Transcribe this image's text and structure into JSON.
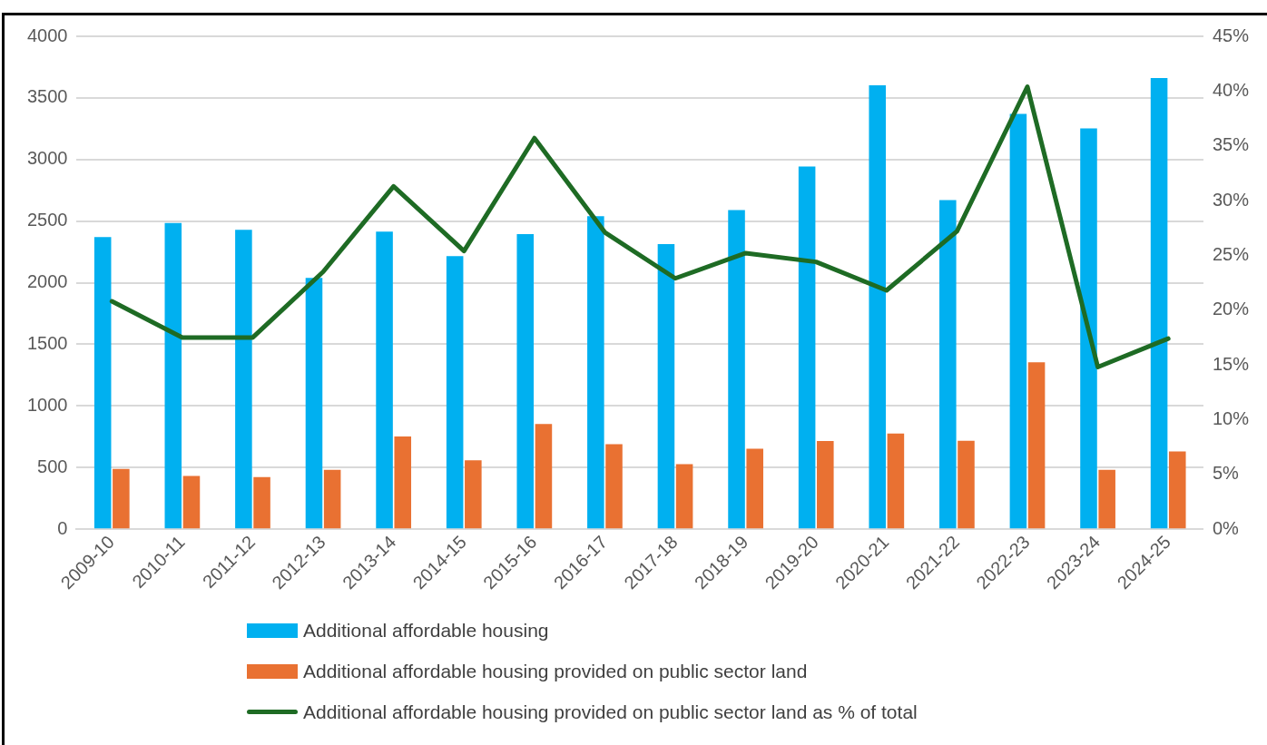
{
  "chart_data": {
    "type": "bar",
    "categories": [
      "2009-10",
      "2010-11",
      "2011-12",
      "2012-13",
      "2013-14",
      "2014-15",
      "2015-16",
      "2016-17",
      "2017-18",
      "2018-19",
      "2019-20",
      "2020-21",
      "2021-22",
      "2022-23",
      "2023-24",
      "2024-25"
    ],
    "series": [
      {
        "name": "Additional affordable housing",
        "color": "#00b0f0",
        "values": [
          2370,
          2485,
          2430,
          2040,
          2415,
          2215,
          2395,
          2540,
          2313,
          2589,
          2943,
          3602,
          2670,
          3370,
          3252,
          3661
        ]
      },
      {
        "name": "Additional affordable housing provided on public sector land",
        "color": "#e97132",
        "values": [
          489,
          431,
          423,
          482,
          752,
          558,
          854,
          690,
          527,
          652,
          715,
          777,
          718,
          1355,
          482,
          630
        ]
      },
      {
        "name": "Additional affordable housing provided on public sector land as % of total",
        "type": "line",
        "axis": "y2",
        "color": "#1e6b24",
        "values": [
          20.8,
          17.5,
          17.5,
          23.5,
          31.3,
          25.4,
          35.7,
          27.1,
          22.9,
          25.2,
          24.4,
          21.8,
          27.2,
          40.4,
          14.8,
          17.4
        ]
      }
    ],
    "ylim": [
      0,
      4000
    ],
    "yticks": [
      0,
      500,
      1000,
      1500,
      2000,
      2500,
      3000,
      3500,
      4000
    ],
    "y2lim": [
      0,
      45
    ],
    "y2ticks": [
      {
        "value": 0,
        "label": "0%"
      },
      {
        "value": 5,
        "label": "5%"
      },
      {
        "value": 10,
        "label": "10%"
      },
      {
        "value": 15,
        "label": "15%"
      },
      {
        "value": 20,
        "label": "20%"
      },
      {
        "value": 25,
        "label": "25%"
      },
      {
        "value": 30,
        "label": "30%"
      },
      {
        "value": 35,
        "label": "35%"
      },
      {
        "value": 40,
        "label": "40%"
      },
      {
        "value": 45,
        "label": "45%"
      }
    ],
    "grid": "y",
    "legend": "bottom",
    "marker": "none",
    "line_style": "solid"
  }
}
